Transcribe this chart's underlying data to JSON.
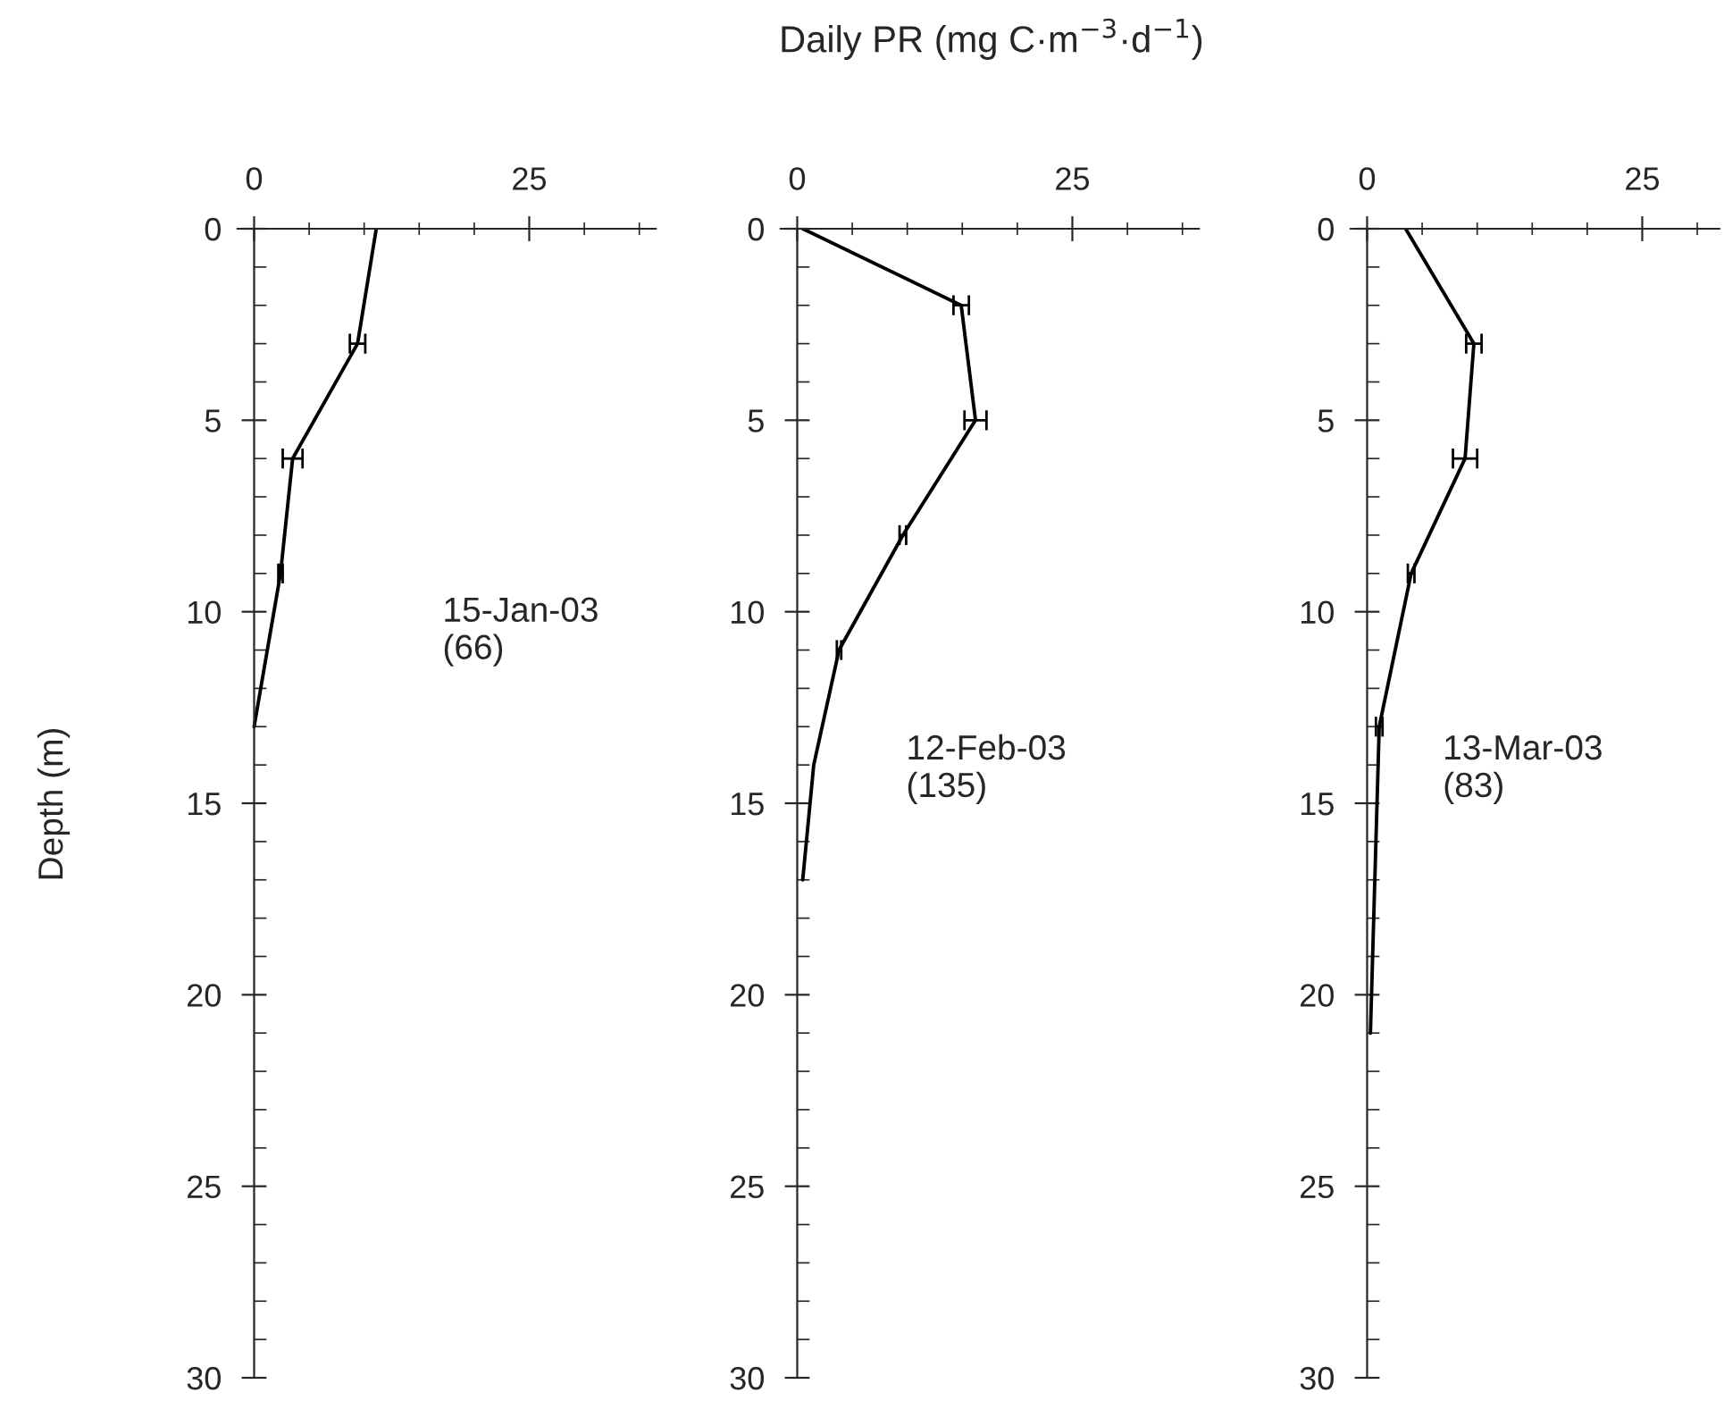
{
  "chart_data": [
    {
      "type": "line",
      "ylabel": "Depth (m)",
      "annotations": [
        "15-Jan-03\n(66)"
      ],
      "series": [
        {
          "color": "#000000",
          "x": [
            11.1,
            9.4,
            3.5,
            2.4,
            0
          ],
          "values": [
            0,
            3,
            6,
            9,
            13
          ],
          "xerrors": [
            null,
            0.7,
            0.9,
            0.2,
            null
          ]
        }
      ],
      "xlim": [
        -1.5,
        36.5
      ],
      "xticks": [
        0,
        {
          "value": 5,
          "label": null
        },
        {
          "value": 10,
          "label": null
        },
        {
          "value": 15,
          "label": null
        },
        {
          "value": 20,
          "label": null
        },
        25,
        {
          "value": 30,
          "label": null
        },
        {
          "value": 35,
          "label": null
        }
      ],
      "ylim": [
        30,
        0
      ],
      "yticks": [
        0,
        {
          "value": 1,
          "label": null
        },
        {
          "value": 2,
          "label": null
        },
        {
          "value": 3,
          "label": null
        },
        {
          "value": 4,
          "label": null
        },
        5,
        {
          "value": 6,
          "label": null
        },
        {
          "value": 7,
          "label": null
        },
        {
          "value": 8,
          "label": null
        },
        {
          "value": 9,
          "label": null
        },
        10,
        {
          "value": 11,
          "label": null
        },
        {
          "value": 12,
          "label": null
        },
        {
          "value": 13,
          "label": null
        },
        {
          "value": 14,
          "label": null
        },
        15,
        {
          "value": 16,
          "label": null
        },
        {
          "value": 17,
          "label": null
        },
        {
          "value": 18,
          "label": null
        },
        {
          "value": 19,
          "label": null
        },
        20,
        {
          "value": 21,
          "label": null
        },
        {
          "value": 22,
          "label": null
        },
        {
          "value": 23,
          "label": null
        },
        {
          "value": 24,
          "label": null
        },
        25,
        {
          "value": 26,
          "label": null
        },
        {
          "value": 27,
          "label": null
        },
        {
          "value": 28,
          "label": null
        },
        {
          "value": 29,
          "label": null
        },
        30
      ],
      "grid": false,
      "legend": false,
      "marker": "none"
    },
    {
      "type": "line",
      "title": "Daily PR (mg C·m$^{−3}$·d$^{−1}$)",
      "annotations": [
        "12-Feb-03\n(135)"
      ],
      "series": [
        {
          "color": "#000000",
          "x": [
            0.5,
            14.9,
            16.2,
            9.6,
            3.8,
            1.5,
            0.5
          ],
          "values": [
            0,
            2,
            5,
            8,
            11,
            14,
            17
          ],
          "xerrors": [
            null,
            0.7,
            1,
            0.3,
            0.2,
            null,
            null
          ]
        }
      ],
      "xlim": [
        -1.5,
        36.5
      ],
      "xticks": [
        0,
        {
          "value": 5,
          "label": null
        },
        {
          "value": 10,
          "label": null
        },
        {
          "value": 15,
          "label": null
        },
        {
          "value": 20,
          "label": null
        },
        25,
        {
          "value": 30,
          "label": null
        },
        {
          "value": 35,
          "label": null
        }
      ],
      "ylim": [
        30,
        0
      ],
      "yticks": [
        0,
        {
          "value": 1,
          "label": null
        },
        {
          "value": 2,
          "label": null
        },
        {
          "value": 3,
          "label": null
        },
        {
          "value": 4,
          "label": null
        },
        5,
        {
          "value": 6,
          "label": null
        },
        {
          "value": 7,
          "label": null
        },
        {
          "value": 8,
          "label": null
        },
        {
          "value": 9,
          "label": null
        },
        10,
        {
          "value": 11,
          "label": null
        },
        {
          "value": 12,
          "label": null
        },
        {
          "value": 13,
          "label": null
        },
        {
          "value": 14,
          "label": null
        },
        15,
        {
          "value": 16,
          "label": null
        },
        {
          "value": 17,
          "label": null
        },
        {
          "value": 18,
          "label": null
        },
        {
          "value": 19,
          "label": null
        },
        20,
        {
          "value": 21,
          "label": null
        },
        {
          "value": 22,
          "label": null
        },
        {
          "value": 23,
          "label": null
        },
        {
          "value": 24,
          "label": null
        },
        25,
        {
          "value": 26,
          "label": null
        },
        {
          "value": 27,
          "label": null
        },
        {
          "value": 28,
          "label": null
        },
        {
          "value": 29,
          "label": null
        },
        30
      ],
      "grid": false,
      "legend": false,
      "marker": "none"
    },
    {
      "type": "line",
      "annotations": [
        "13-Mar-03\n(83)"
      ],
      "series": [
        {
          "color": "#000000",
          "x": [
            3.5,
            9.7,
            8.9,
            4.0,
            1.1,
            0.3
          ],
          "values": [
            0,
            3,
            6,
            9,
            13,
            21
          ],
          "xerrors": [
            null,
            0.7,
            1.1,
            0.3,
            0.3,
            null
          ]
        }
      ],
      "xlim": [
        -1.5,
        32
      ],
      "xticks": [
        0,
        {
          "value": 5,
          "label": null
        },
        {
          "value": 10,
          "label": null
        },
        {
          "value": 15,
          "label": null
        },
        {
          "value": 20,
          "label": null
        },
        25,
        {
          "value": 30,
          "label": null
        }
      ],
      "ylim": [
        30,
        0
      ],
      "yticks": [
        0,
        {
          "value": 1,
          "label": null
        },
        {
          "value": 2,
          "label": null
        },
        {
          "value": 3,
          "label": null
        },
        {
          "value": 4,
          "label": null
        },
        5,
        {
          "value": 6,
          "label": null
        },
        {
          "value": 7,
          "label": null
        },
        {
          "value": 8,
          "label": null
        },
        {
          "value": 9,
          "label": null
        },
        10,
        {
          "value": 11,
          "label": null
        },
        {
          "value": 12,
          "label": null
        },
        {
          "value": 13,
          "label": null
        },
        {
          "value": 14,
          "label": null
        },
        15,
        {
          "value": 16,
          "label": null
        },
        {
          "value": 17,
          "label": null
        },
        {
          "value": 18,
          "label": null
        },
        {
          "value": 19,
          "label": null
        },
        20,
        {
          "value": 21,
          "label": null
        },
        {
          "value": 22,
          "label": null
        },
        {
          "value": 23,
          "label": null
        },
        {
          "value": 24,
          "label": null
        },
        25,
        {
          "value": 26,
          "label": null
        },
        {
          "value": 27,
          "label": null
        },
        {
          "value": 28,
          "label": null
        },
        {
          "value": 29,
          "label": null
        },
        30
      ],
      "grid": false,
      "legend": false,
      "marker": "none"
    }
  ]
}
